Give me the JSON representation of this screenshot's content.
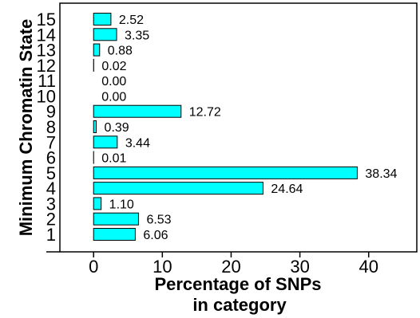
{
  "chart_data": {
    "type": "bar",
    "orientation": "horizontal",
    "categories": [
      "1",
      "2",
      "3",
      "4",
      "5",
      "6",
      "7",
      "8",
      "9",
      "10",
      "11",
      "12",
      "13",
      "14",
      "15"
    ],
    "values": [
      6.06,
      6.53,
      1.1,
      24.64,
      38.34,
      0.01,
      3.44,
      0.39,
      12.72,
      0.0,
      0.0,
      0.02,
      0.88,
      3.35,
      2.52
    ],
    "value_labels": [
      "6.06",
      "6.53",
      "1.10",
      "24.64",
      "38.34",
      "0.01",
      "3.44",
      "0.39",
      "12.72",
      "0.00",
      "0.00",
      "0.02",
      "0.88",
      "3.35",
      "2.52"
    ],
    "x_ticks": [
      "0",
      "10",
      "20",
      "30",
      "40"
    ],
    "x_tick_values": [
      0,
      10,
      20,
      30,
      40
    ],
    "xlim": [
      -4.9,
      47
    ],
    "xlabel_line1": "Percentage of SNPs",
    "xlabel_line2": "in category",
    "ylabel": "Minimum Chromatin State",
    "bar_color": "#00ffff",
    "bar_edge_color": "#000000",
    "grid": false
  }
}
